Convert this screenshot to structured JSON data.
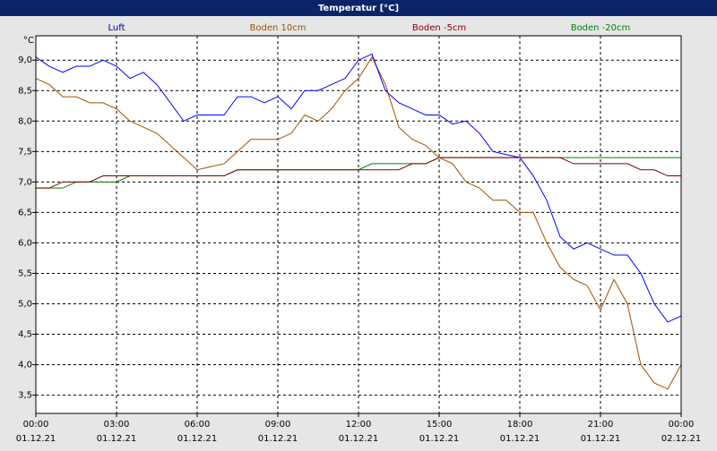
{
  "chart_data": {
    "type": "line",
    "title": "Temperatur [°C]",
    "y_label": "°C",
    "x": [
      0,
      0.5,
      1,
      1.5,
      2,
      2.5,
      3,
      3.5,
      4,
      4.5,
      5,
      5.5,
      6,
      6.5,
      7,
      7.5,
      8,
      8.5,
      9,
      9.5,
      10,
      10.5,
      11,
      11.5,
      12,
      12.5,
      13,
      13.5,
      14,
      14.5,
      15,
      15.5,
      16,
      16.5,
      17,
      17.5,
      18,
      18.5,
      19,
      19.5,
      20,
      20.5,
      21,
      21.5,
      22,
      22.5,
      23,
      23.5,
      24
    ],
    "series": [
      {
        "name": "Luft",
        "color": "#0000ff",
        "label_color": "#0000a0",
        "values": [
          9.05,
          8.9,
          8.8,
          8.9,
          8.9,
          9.0,
          8.9,
          8.7,
          8.8,
          8.6,
          8.3,
          8.0,
          8.1,
          8.1,
          8.1,
          8.4,
          8.4,
          8.3,
          8.4,
          8.2,
          8.5,
          8.5,
          8.6,
          8.7,
          9.0,
          9.1,
          8.5,
          8.3,
          8.2,
          8.1,
          8.1,
          7.95,
          8.0,
          7.8,
          7.5,
          7.45,
          7.4,
          7.1,
          6.7,
          6.1,
          5.9,
          6.0,
          5.9,
          5.8,
          5.8,
          5.5,
          5.0,
          4.7,
          4.8
        ]
      },
      {
        "name": "Boden 10cm",
        "color": "#a05000",
        "label_color": "#a05000",
        "values": [
          8.7,
          8.6,
          8.4,
          8.4,
          8.3,
          8.3,
          8.2,
          8.0,
          7.9,
          7.8,
          7.6,
          7.4,
          7.2,
          7.25,
          7.3,
          7.5,
          7.7,
          7.7,
          7.7,
          7.8,
          8.1,
          8.0,
          8.2,
          8.5,
          8.7,
          9.05,
          8.6,
          7.9,
          7.7,
          7.6,
          7.4,
          7.3,
          7.0,
          6.9,
          6.7,
          6.7,
          6.5,
          6.5,
          6.0,
          5.6,
          5.4,
          5.3,
          4.9,
          5.4,
          5.0,
          4.0,
          3.7,
          3.6,
          4.0
        ]
      },
      {
        "name": "Boden -5cm",
        "color": "#800000",
        "label_color": "#800000",
        "values": [
          6.9,
          6.9,
          7.0,
          7.0,
          7.0,
          7.1,
          7.1,
          7.1,
          7.1,
          7.1,
          7.1,
          7.1,
          7.1,
          7.1,
          7.1,
          7.2,
          7.2,
          7.2,
          7.2,
          7.2,
          7.2,
          7.2,
          7.2,
          7.2,
          7.2,
          7.2,
          7.2,
          7.2,
          7.3,
          7.3,
          7.4,
          7.4,
          7.4,
          7.4,
          7.4,
          7.4,
          7.4,
          7.4,
          7.4,
          7.4,
          7.3,
          7.3,
          7.3,
          7.3,
          7.3,
          7.2,
          7.2,
          7.1,
          7.1
        ]
      },
      {
        "name": "Boden -20cm",
        "color": "#008000",
        "label_color": "#008000",
        "values": [
          6.9,
          6.9,
          6.9,
          7.0,
          7.0,
          7.0,
          7.0,
          7.1,
          7.1,
          7.1,
          7.1,
          7.1,
          7.1,
          7.1,
          7.1,
          7.2,
          7.2,
          7.2,
          7.2,
          7.2,
          7.2,
          7.2,
          7.2,
          7.2,
          7.2,
          7.3,
          7.3,
          7.3,
          7.3,
          7.3,
          7.4,
          7.4,
          7.4,
          7.4,
          7.4,
          7.4,
          7.4,
          7.4,
          7.4,
          7.4,
          7.4,
          7.4,
          7.4,
          7.4,
          7.4,
          7.4,
          7.4,
          7.4,
          7.4
        ]
      }
    ],
    "xlim": [
      0,
      24
    ],
    "ylim": [
      3.2,
      9.4
    ],
    "yticks": [
      {
        "value": 3.5,
        "label": "3,5"
      },
      {
        "value": 4,
        "label": "4,0"
      },
      {
        "value": 4.5,
        "label": "4,5"
      },
      {
        "value": 5,
        "label": "5,0"
      },
      {
        "value": 5.5,
        "label": "5,5"
      },
      {
        "value": 6,
        "label": "6,0"
      },
      {
        "value": 6.5,
        "label": "6,5"
      },
      {
        "value": 7,
        "label": "7,0"
      },
      {
        "value": 7.5,
        "label": "7,5"
      },
      {
        "value": 8,
        "label": "8,0"
      },
      {
        "value": 8.5,
        "label": "8,5"
      },
      {
        "value": 9,
        "label": "9,0"
      }
    ],
    "xticks": [
      {
        "value": 0,
        "label": "00:00",
        "date": "01.12.21"
      },
      {
        "value": 3,
        "label": "03:00",
        "date": "01.12.21"
      },
      {
        "value": 6,
        "label": "06:00",
        "date": "01.12.21"
      },
      {
        "value": 9,
        "label": "09:00",
        "date": "01.12.21"
      },
      {
        "value": 12,
        "label": "12:00",
        "date": "01.12.21"
      },
      {
        "value": 15,
        "label": "15:00",
        "date": "01.12.21"
      },
      {
        "value": 18,
        "label": "18:00",
        "date": "01.12.21"
      },
      {
        "value": 21,
        "label": "21:00",
        "date": "01.12.21"
      },
      {
        "value": 24,
        "label": "00:00",
        "date": "02.12.21"
      }
    ],
    "grid": true
  }
}
